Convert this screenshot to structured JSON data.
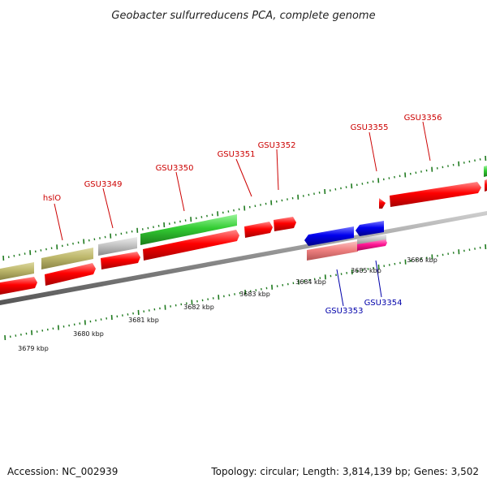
{
  "title": "Geobacter sulfurreducens PCA, complete genome",
  "footer": {
    "accession": "Accession: NC_002939",
    "summary": "Topology: circular; Length: 3,814,139 bp; Genes: 3,502"
  },
  "colors": {
    "forward_label": "#cc0000",
    "reverse_label": "#0000aa",
    "backbone": "#8c8c8c",
    "ticks": "#1f7a1f",
    "red_gene": "#ff0000",
    "green_gene": "#33cc33",
    "khaki_gene": "#bdb76b",
    "gray_gene": "#bdbdbd",
    "blue_gene": "#0000ee",
    "salmon_gene": "#f08080",
    "magenta_gene": "#ff1493"
  },
  "scale_labels": [
    "3679 kbp",
    "3680 kbp",
    "3681 kbp",
    "3682 kbp",
    "3683 kbp",
    "3684 kbp",
    "3685 kbp",
    "3686 kbp"
  ],
  "genes_forward": [
    {
      "label": "hslO"
    },
    {
      "label": "GSU3349"
    },
    {
      "label": "GSU3350"
    },
    {
      "label": "GSU3351"
    },
    {
      "label": "GSU3352"
    },
    {
      "label": "GSU3355"
    },
    {
      "label": "GSU3356"
    }
  ],
  "genes_reverse": [
    {
      "label": "GSU3353"
    },
    {
      "label": "GSU3354"
    }
  ]
}
